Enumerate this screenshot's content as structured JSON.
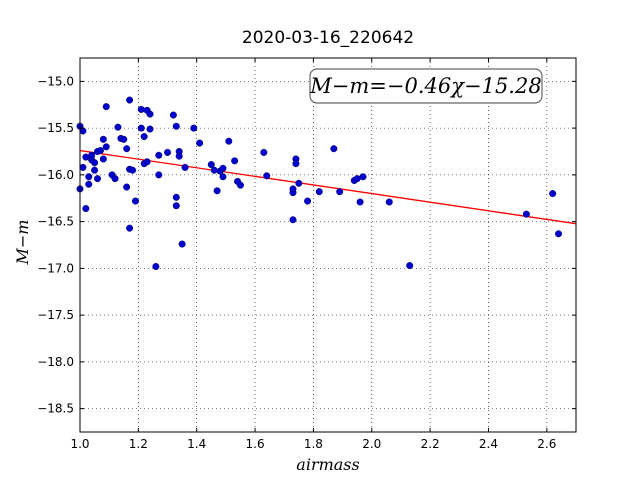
{
  "chart_data": {
    "type": "scatter",
    "title": "2020-03-16_220642",
    "xlabel": "airmass",
    "ylabel": "M−m",
    "xlim": [
      1.0,
      2.7
    ],
    "ylim": [
      -18.75,
      -14.75
    ],
    "y_inverted": true,
    "x_ticks": [
      1.0,
      1.2,
      1.4,
      1.6,
      1.8,
      2.0,
      2.2,
      2.4,
      2.6
    ],
    "x_tick_labels": [
      "1.0",
      "1.2",
      "1.4",
      "1.6",
      "1.8",
      "2.0",
      "2.2",
      "2.4",
      "2.6"
    ],
    "y_ticks": [
      -15.0,
      -15.5,
      -16.0,
      -16.5,
      -17.0,
      -17.5,
      -18.0,
      -18.5
    ],
    "y_tick_labels": [
      "−15.0",
      "−15.5",
      "−16.0",
      "−16.5",
      "−17.0",
      "−17.5",
      "−18.0",
      "−18.5"
    ],
    "grid": true,
    "annotation": {
      "text": "M−m=−0.46χ−15.28",
      "position": "top-right"
    },
    "fit": {
      "slope": -0.46,
      "intercept": -15.28,
      "color": "#ff0000"
    },
    "marker_color": "#0000cc",
    "points": [
      [
        1.0,
        -15.48
      ],
      [
        1.01,
        -15.53
      ],
      [
        1.0,
        -16.15
      ],
      [
        1.01,
        -15.92
      ],
      [
        1.02,
        -15.81
      ],
      [
        1.02,
        -16.36
      ],
      [
        1.03,
        -16.02
      ],
      [
        1.03,
        -16.1
      ],
      [
        1.04,
        -15.84
      ],
      [
        1.04,
        -15.79
      ],
      [
        1.05,
        -15.87
      ],
      [
        1.05,
        -15.95
      ],
      [
        1.06,
        -15.75
      ],
      [
        1.06,
        -16.04
      ],
      [
        1.07,
        -15.74
      ],
      [
        1.08,
        -15.62
      ],
      [
        1.08,
        -15.83
      ],
      [
        1.09,
        -15.27
      ],
      [
        1.09,
        -15.7
      ],
      [
        1.11,
        -16.0
      ],
      [
        1.12,
        -16.04
      ],
      [
        1.13,
        -15.49
      ],
      [
        1.14,
        -15.61
      ],
      [
        1.15,
        -15.62
      ],
      [
        1.16,
        -15.72
      ],
      [
        1.16,
        -16.13
      ],
      [
        1.17,
        -16.57
      ],
      [
        1.17,
        -15.2
      ],
      [
        1.17,
        -15.94
      ],
      [
        1.18,
        -15.95
      ],
      [
        1.19,
        -16.28
      ],
      [
        1.21,
        -15.3
      ],
      [
        1.21,
        -15.5
      ],
      [
        1.22,
        -15.59
      ],
      [
        1.22,
        -15.88
      ],
      [
        1.23,
        -15.31
      ],
      [
        1.24,
        -15.35
      ],
      [
        1.24,
        -15.51
      ],
      [
        1.23,
        -15.86
      ],
      [
        1.26,
        -16.98
      ],
      [
        1.27,
        -15.79
      ],
      [
        1.27,
        -16.0
      ],
      [
        1.3,
        -15.76
      ],
      [
        1.32,
        -15.36
      ],
      [
        1.33,
        -15.48
      ],
      [
        1.33,
        -16.24
      ],
      [
        1.33,
        -16.33
      ],
      [
        1.34,
        -15.75
      ],
      [
        1.34,
        -15.8
      ],
      [
        1.35,
        -16.74
      ],
      [
        1.36,
        -15.92
      ],
      [
        1.39,
        -15.5
      ],
      [
        1.41,
        -15.66
      ],
      [
        1.45,
        -15.89
      ],
      [
        1.46,
        -15.95
      ],
      [
        1.47,
        -16.17
      ],
      [
        1.48,
        -15.96
      ],
      [
        1.49,
        -15.93
      ],
      [
        1.49,
        -16.02
      ],
      [
        1.51,
        -15.64
      ],
      [
        1.53,
        -15.85
      ],
      [
        1.54,
        -16.07
      ],
      [
        1.55,
        -16.11
      ],
      [
        1.63,
        -15.76
      ],
      [
        1.64,
        -16.01
      ],
      [
        1.73,
        -16.48
      ],
      [
        1.73,
        -16.19
      ],
      [
        1.73,
        -16.15
      ],
      [
        1.74,
        -15.83
      ],
      [
        1.74,
        -15.88
      ],
      [
        1.75,
        -16.09
      ],
      [
        1.78,
        -16.28
      ],
      [
        1.82,
        -16.18
      ],
      [
        1.87,
        -15.72
      ],
      [
        1.89,
        -16.18
      ],
      [
        1.94,
        -16.06
      ],
      [
        1.95,
        -16.04
      ],
      [
        1.96,
        -16.29
      ],
      [
        1.97,
        -16.02
      ],
      [
        2.06,
        -16.29
      ],
      [
        2.13,
        -16.97
      ],
      [
        2.53,
        -16.42
      ],
      [
        2.62,
        -16.2
      ],
      [
        2.64,
        -16.63
      ]
    ]
  }
}
